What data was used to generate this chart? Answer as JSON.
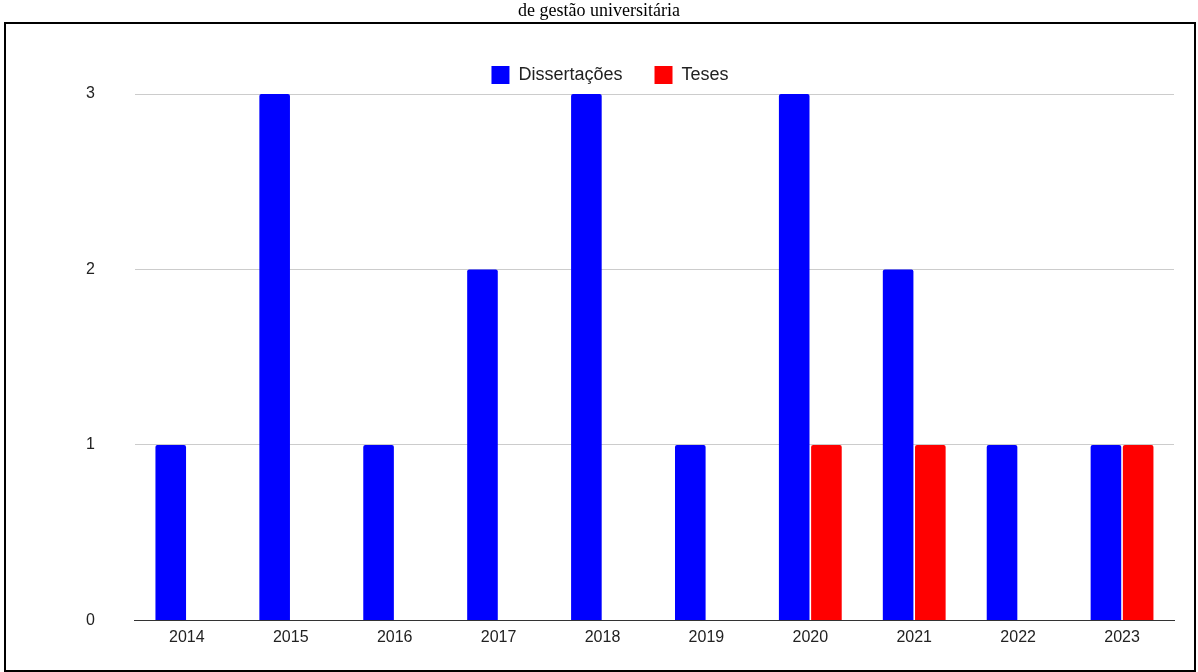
{
  "chart_data": {
    "type": "bar",
    "title": "de gestão universitária",
    "categories": [
      "2014",
      "2015",
      "2016",
      "2017",
      "2018",
      "2019",
      "2020",
      "2021",
      "2022",
      "2023"
    ],
    "series": [
      {
        "name": "Dissertações",
        "color": "#0000ff",
        "values": [
          1,
          3,
          1,
          2,
          3,
          1,
          3,
          2,
          1,
          1
        ]
      },
      {
        "name": "Teses",
        "color": "#ff0000",
        "values": [
          null,
          null,
          null,
          null,
          null,
          null,
          1,
          1,
          null,
          1
        ]
      }
    ],
    "ylim": [
      0,
      3
    ],
    "yticks": [
      0,
      1,
      2,
      3
    ],
    "grid": "y",
    "legend": "top"
  }
}
